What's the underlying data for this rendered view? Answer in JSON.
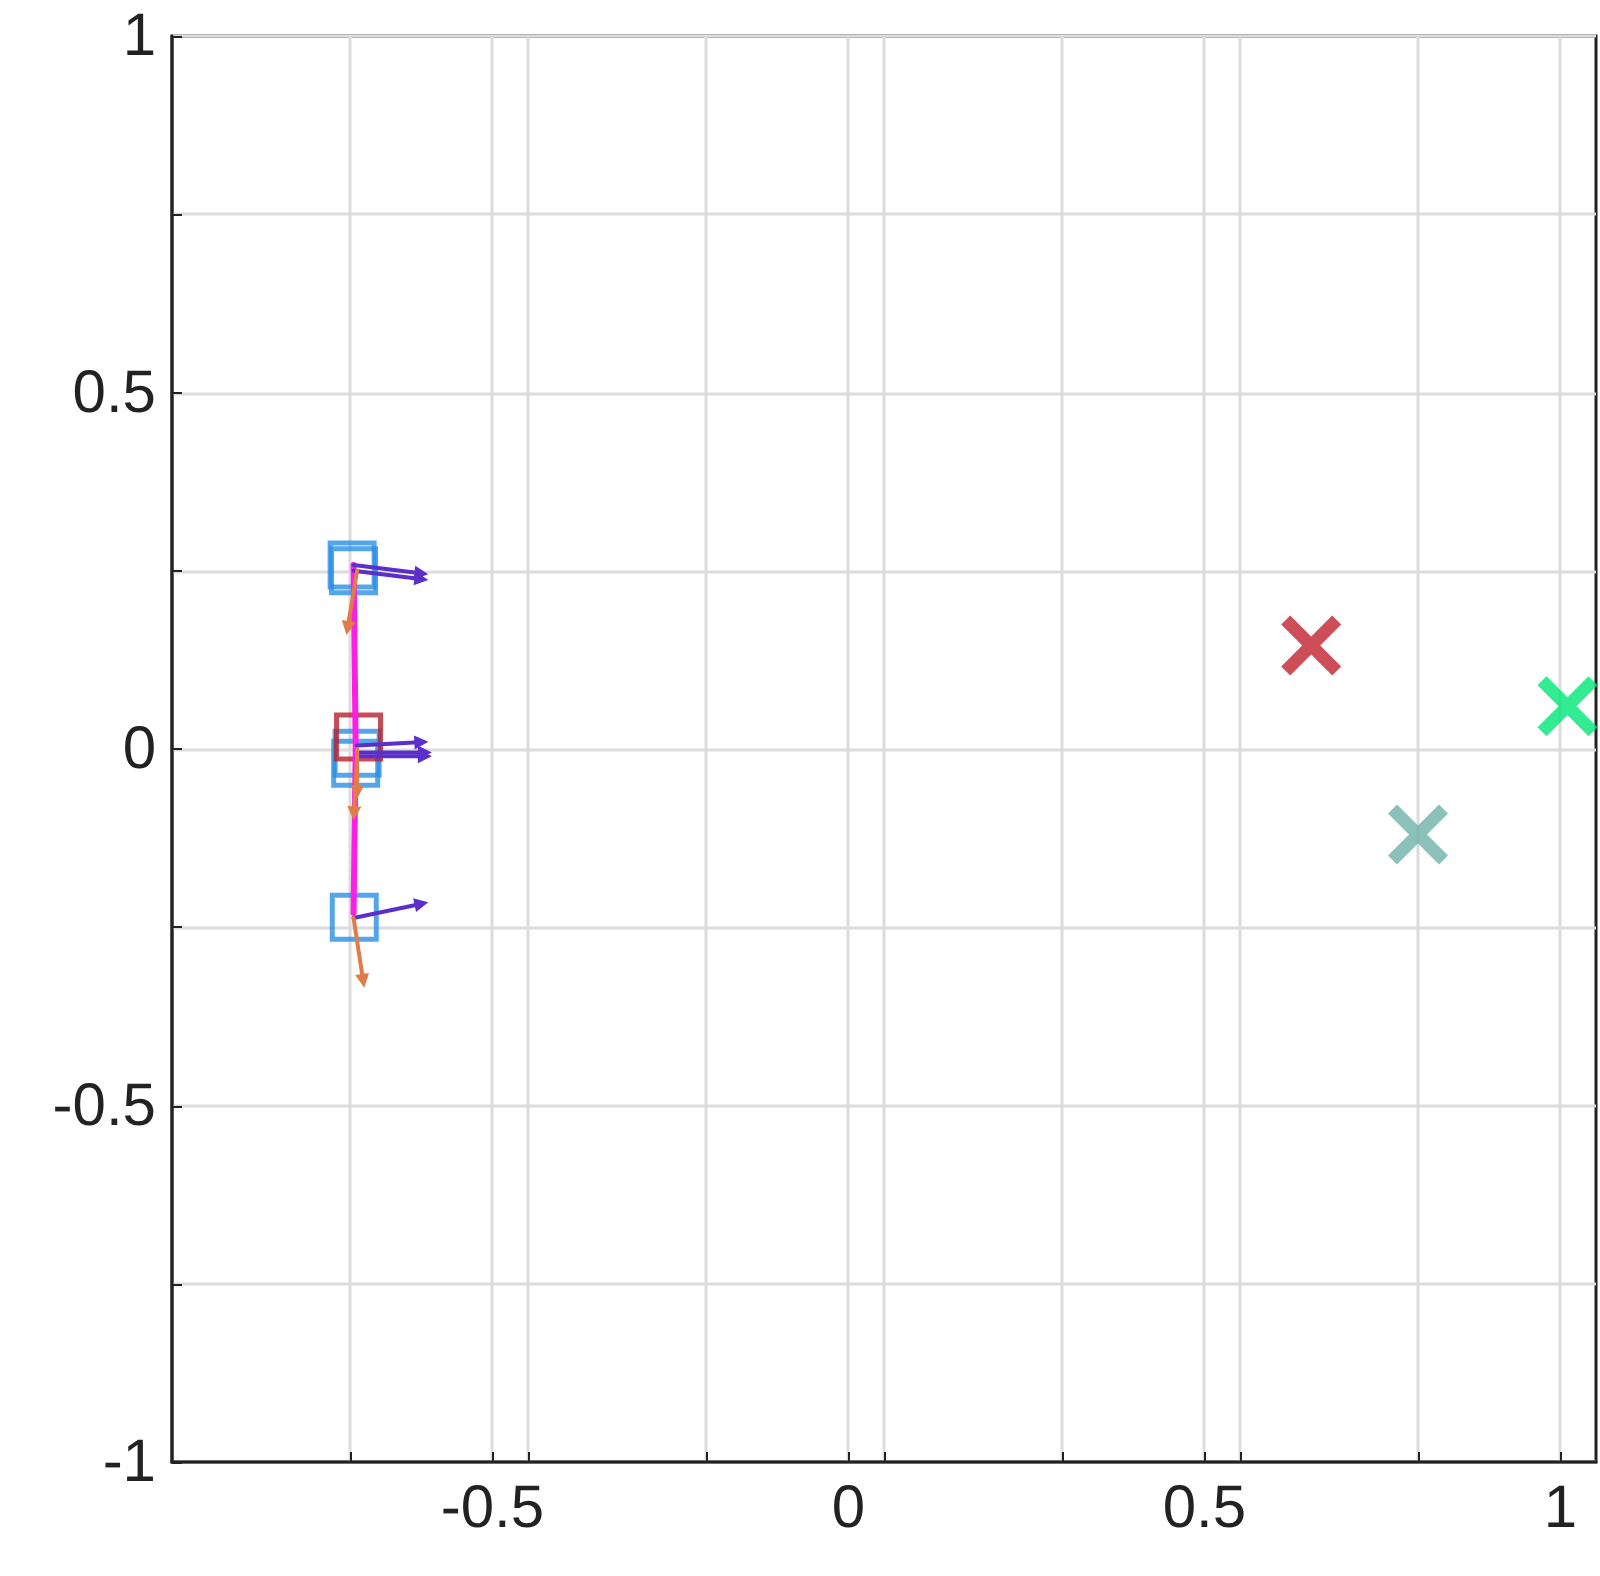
{
  "chart_data": {
    "type": "scatter",
    "xlim": [
      -0.95,
      1.05
    ],
    "xticks": [
      {
        "value": -0.7,
        "label": null
      },
      -0.5,
      {
        "value": -0.45,
        "label": null
      },
      {
        "value": -0.2,
        "label": null
      },
      0,
      {
        "value": 0.05,
        "label": null
      },
      {
        "value": 0.3,
        "label": null
      },
      0.5,
      {
        "value": 0.55,
        "label": null
      },
      {
        "value": 0.8,
        "label": null
      },
      1
    ],
    "ylim": [
      -1,
      1
    ],
    "yticks": [
      -1,
      {
        "value": -0.75,
        "label": null
      },
      -0.5,
      {
        "value": -0.25,
        "label": null
      },
      0,
      {
        "value": 0.25,
        "label": null
      },
      0.5,
      {
        "value": 0.75,
        "label": null
      },
      1
    ],
    "grid": true,
    "series": [
      {
        "marker": "square",
        "color": "#2b8fe6",
        "x": [
          -0.697,
          -0.695,
          -0.69,
          -0.692,
          -0.694
        ],
        "values": [
          0.258,
          0.25,
          -0.006,
          -0.02,
          -0.236
        ]
      },
      {
        "marker": "square",
        "color": "#b5202d",
        "x": [
          -0.688
        ],
        "values": [
          0.017
        ]
      },
      {
        "type": "line",
        "marker": "none",
        "color": "#ff1ee6",
        "x": [
          -0.695,
          -0.692,
          -0.695
        ],
        "values": [
          0.258,
          0.0,
          -0.23
        ]
      },
      {
        "marker": "cross",
        "color": "#c0202f",
        "x": [
          0.65
        ],
        "values": [
          0.145
        ]
      },
      {
        "marker": "cross",
        "color": "#6fb0aa",
        "x": [
          0.8
        ],
        "values": [
          -0.12
        ]
      },
      {
        "marker": "cross",
        "color": "#00e676",
        "x": [
          1.01
        ],
        "values": [
          0.06
        ]
      }
    ]
  }
}
